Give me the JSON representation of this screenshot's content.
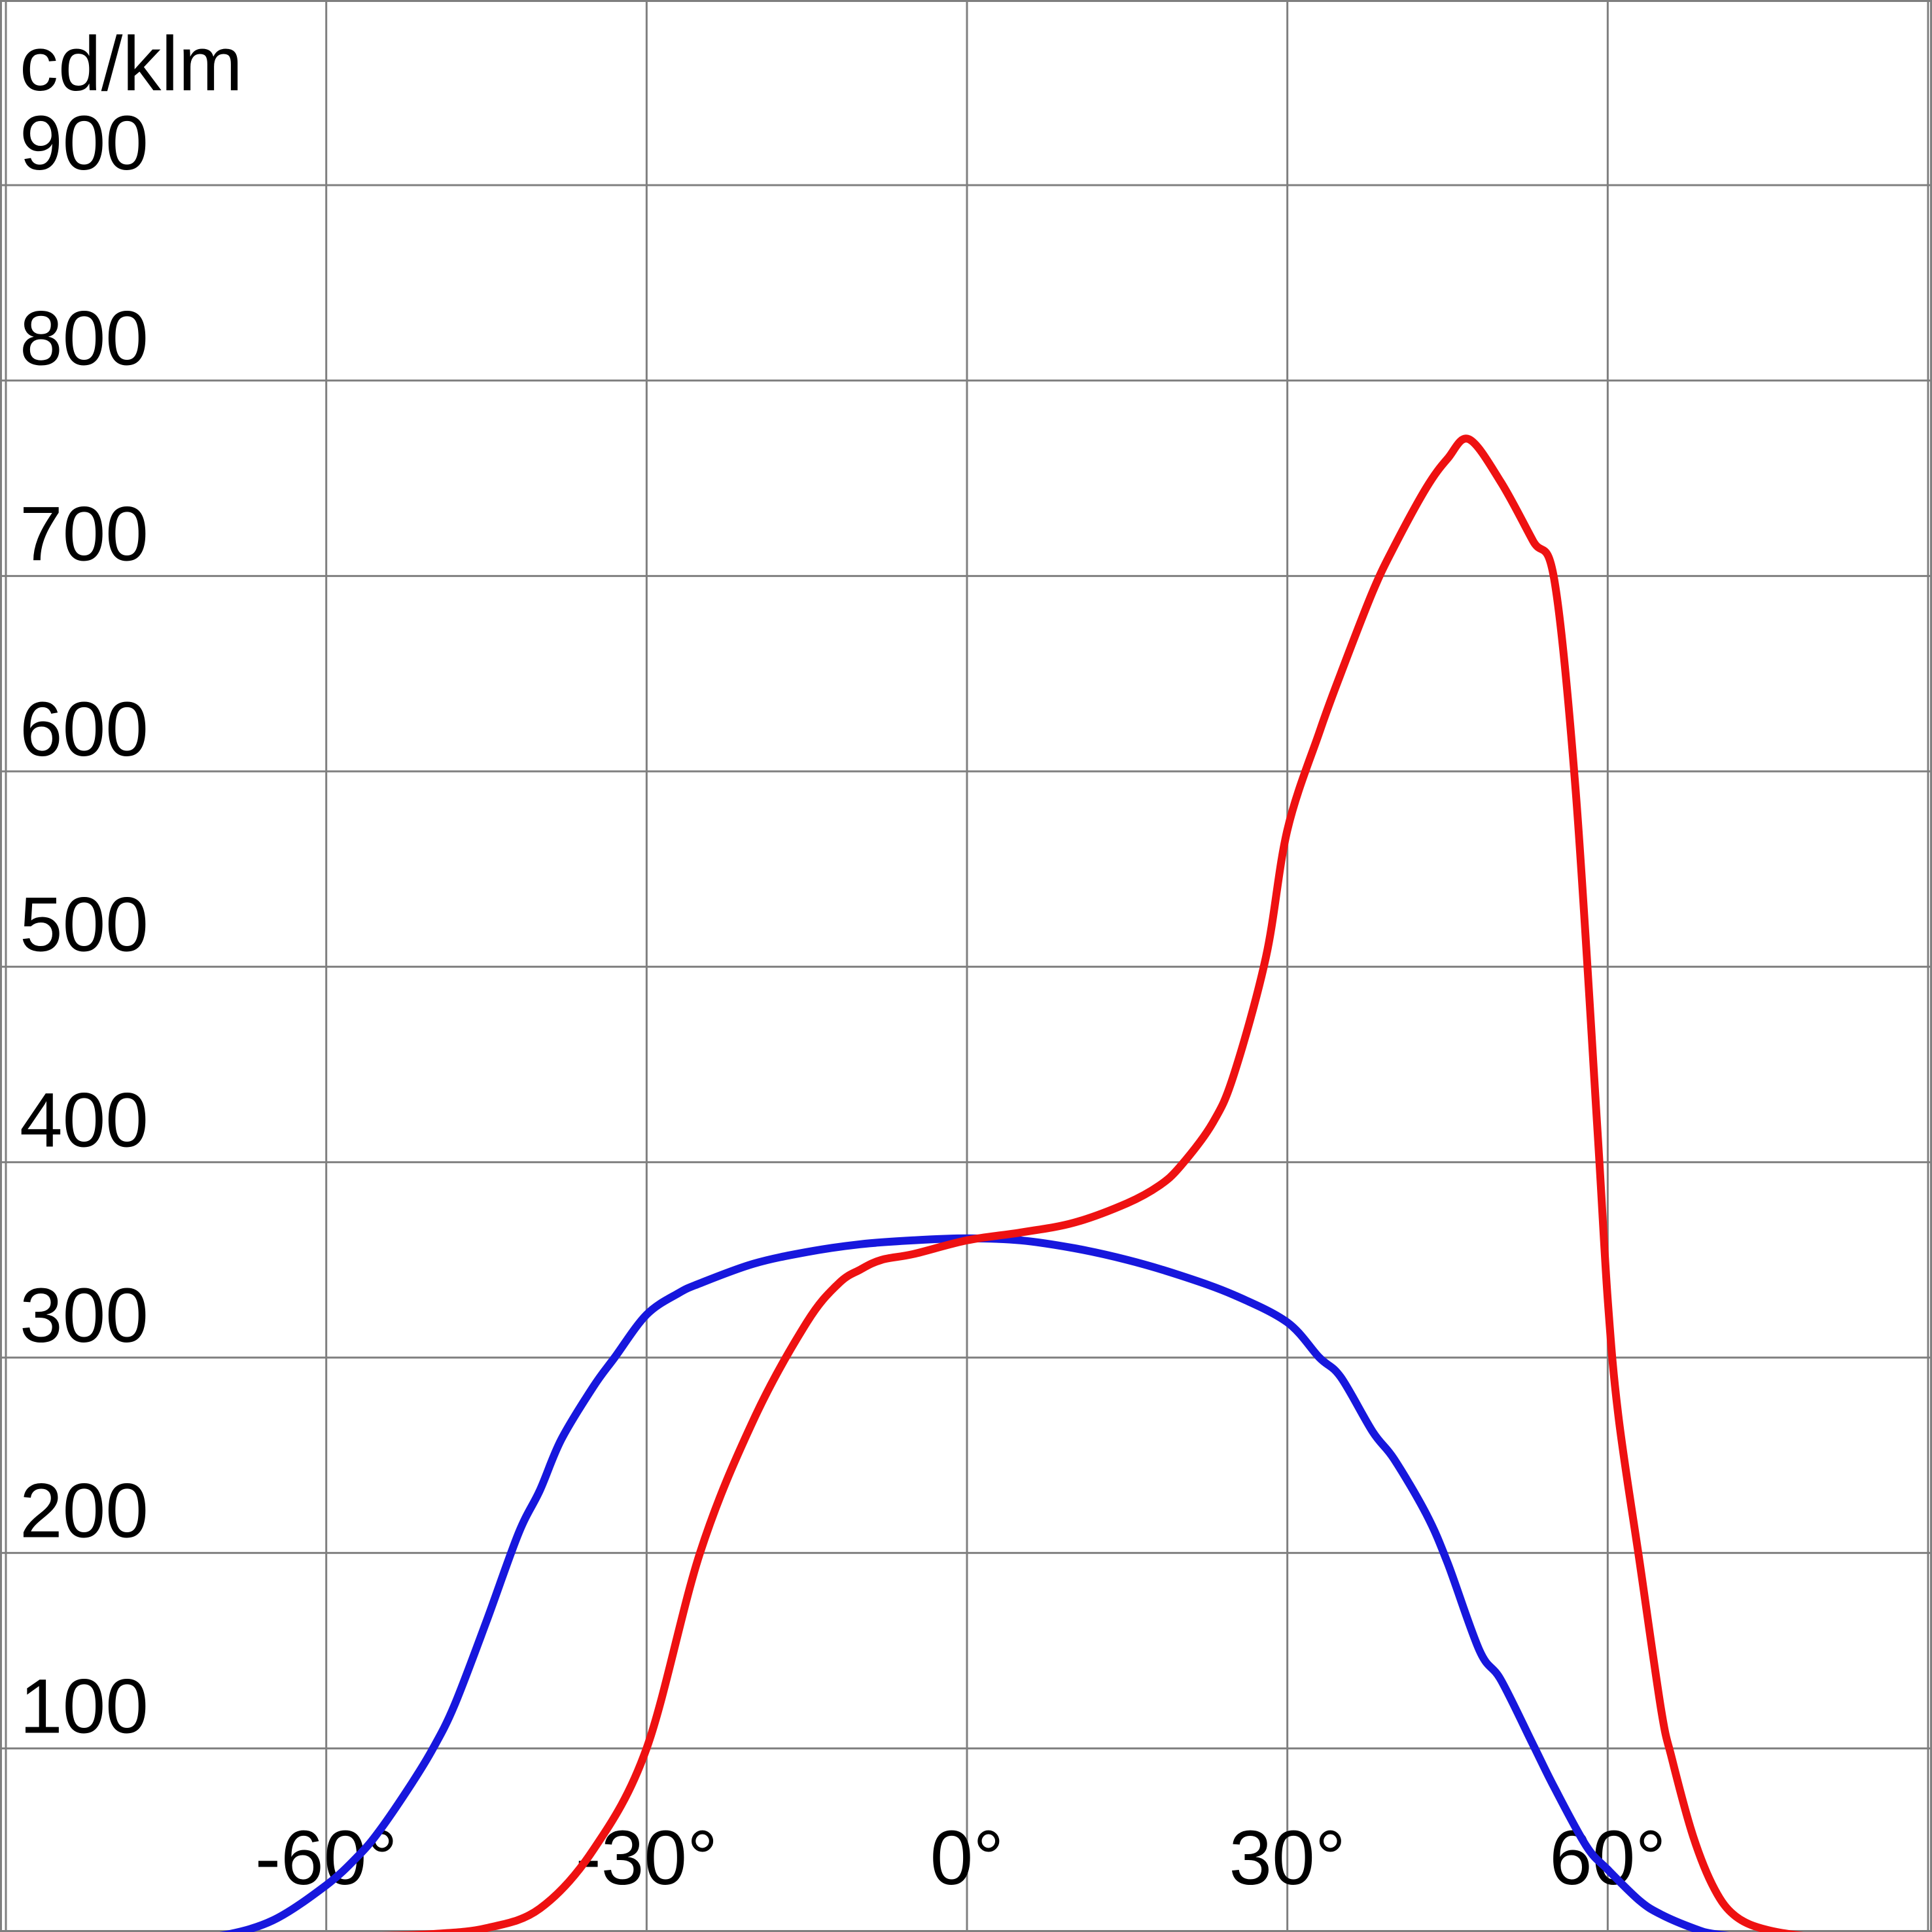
{
  "chart_data": {
    "type": "line",
    "title": "",
    "unit_label": "cd/klm",
    "xlabel": "",
    "ylabel": "cd/klm",
    "x_range": [
      -90,
      90
    ],
    "y_range": [
      0,
      1000
    ],
    "grid": true,
    "grid_color": "#7f7f7f",
    "background": "#ffffff",
    "x_gridlines": [
      -90,
      -60,
      -30,
      0,
      30,
      60,
      90
    ],
    "x_ticks": [
      {
        "value": -60,
        "label": "-60°"
      },
      {
        "value": -30,
        "label": "-30°"
      },
      {
        "value": 0,
        "label": "0°"
      },
      {
        "value": 30,
        "label": "30°"
      },
      {
        "value": 60,
        "label": "60°"
      }
    ],
    "y_ticks": [
      {
        "value": 100,
        "label": "100"
      },
      {
        "value": 200,
        "label": "200"
      },
      {
        "value": 300,
        "label": "300"
      },
      {
        "value": 400,
        "label": "400"
      },
      {
        "value": 500,
        "label": "500"
      },
      {
        "value": 600,
        "label": "600"
      },
      {
        "value": 700,
        "label": "700"
      },
      {
        "value": 800,
        "label": "800"
      },
      {
        "value": 900,
        "label": "900"
      }
    ],
    "series": [
      {
        "name": "blue-curve",
        "color": "#1717dd",
        "x": [
          -90,
          -85,
          -80,
          -75,
          -70,
          -65,
          -60,
          -57,
          -55,
          -52,
          -50,
          -48,
          -45,
          -42,
          -40,
          -38,
          -35,
          -33,
          -30,
          -27,
          -25,
          -20,
          -15,
          -10,
          -5,
          0,
          5,
          10,
          15,
          20,
          25,
          30,
          33,
          35,
          38,
          40,
          43,
          45,
          48,
          50,
          53,
          55,
          58,
          60,
          63,
          65,
          68,
          70,
          75,
          80,
          90
        ],
        "values": [
          0,
          0,
          1,
          2,
          4,
          12,
          30,
          45,
          58,
          82,
          100,
          122,
          165,
          210,
          232,
          258,
          285,
          300,
          322,
          333,
          338,
          348,
          354,
          358,
          360,
          361,
          360,
          356,
          350,
          342,
          332,
          318,
          300,
          290,
          262,
          248,
          220,
          195,
          150,
          135,
          102,
          80,
          50,
          38,
          22,
          15,
          8,
          5,
          2,
          0,
          0
        ]
      },
      {
        "name": "red-curve",
        "color": "#ee1111",
        "x": [
          -90,
          -80,
          -75,
          -70,
          -65,
          -60,
          -55,
          -50,
          -45,
          -40,
          -35,
          -30,
          -25,
          -20,
          -15,
          -12,
          -10,
          -8,
          -5,
          0,
          5,
          10,
          15,
          18,
          20,
          23,
          25,
          28,
          30,
          33,
          35,
          38,
          40,
          43,
          45,
          47,
          50,
          53,
          55,
          57,
          59,
          60,
          61,
          63,
          65,
          66,
          68,
          70,
          72,
          75,
          80,
          85,
          90
        ],
        "values": [
          0,
          0,
          0,
          1,
          2,
          3,
          4,
          5,
          8,
          18,
          48,
          100,
          200,
          268,
          318,
          338,
          345,
          350,
          353,
          360,
          364,
          369,
          379,
          388,
          398,
          420,
          445,
          505,
          570,
          620,
          650,
          692,
          715,
          745,
          760,
          770,
          748,
          718,
          698,
          590,
          420,
          330,
          270,
          195,
          120,
          95,
          55,
          28,
          14,
          7,
          3,
          1,
          0
        ]
      }
    ],
    "legend_position": "none"
  }
}
